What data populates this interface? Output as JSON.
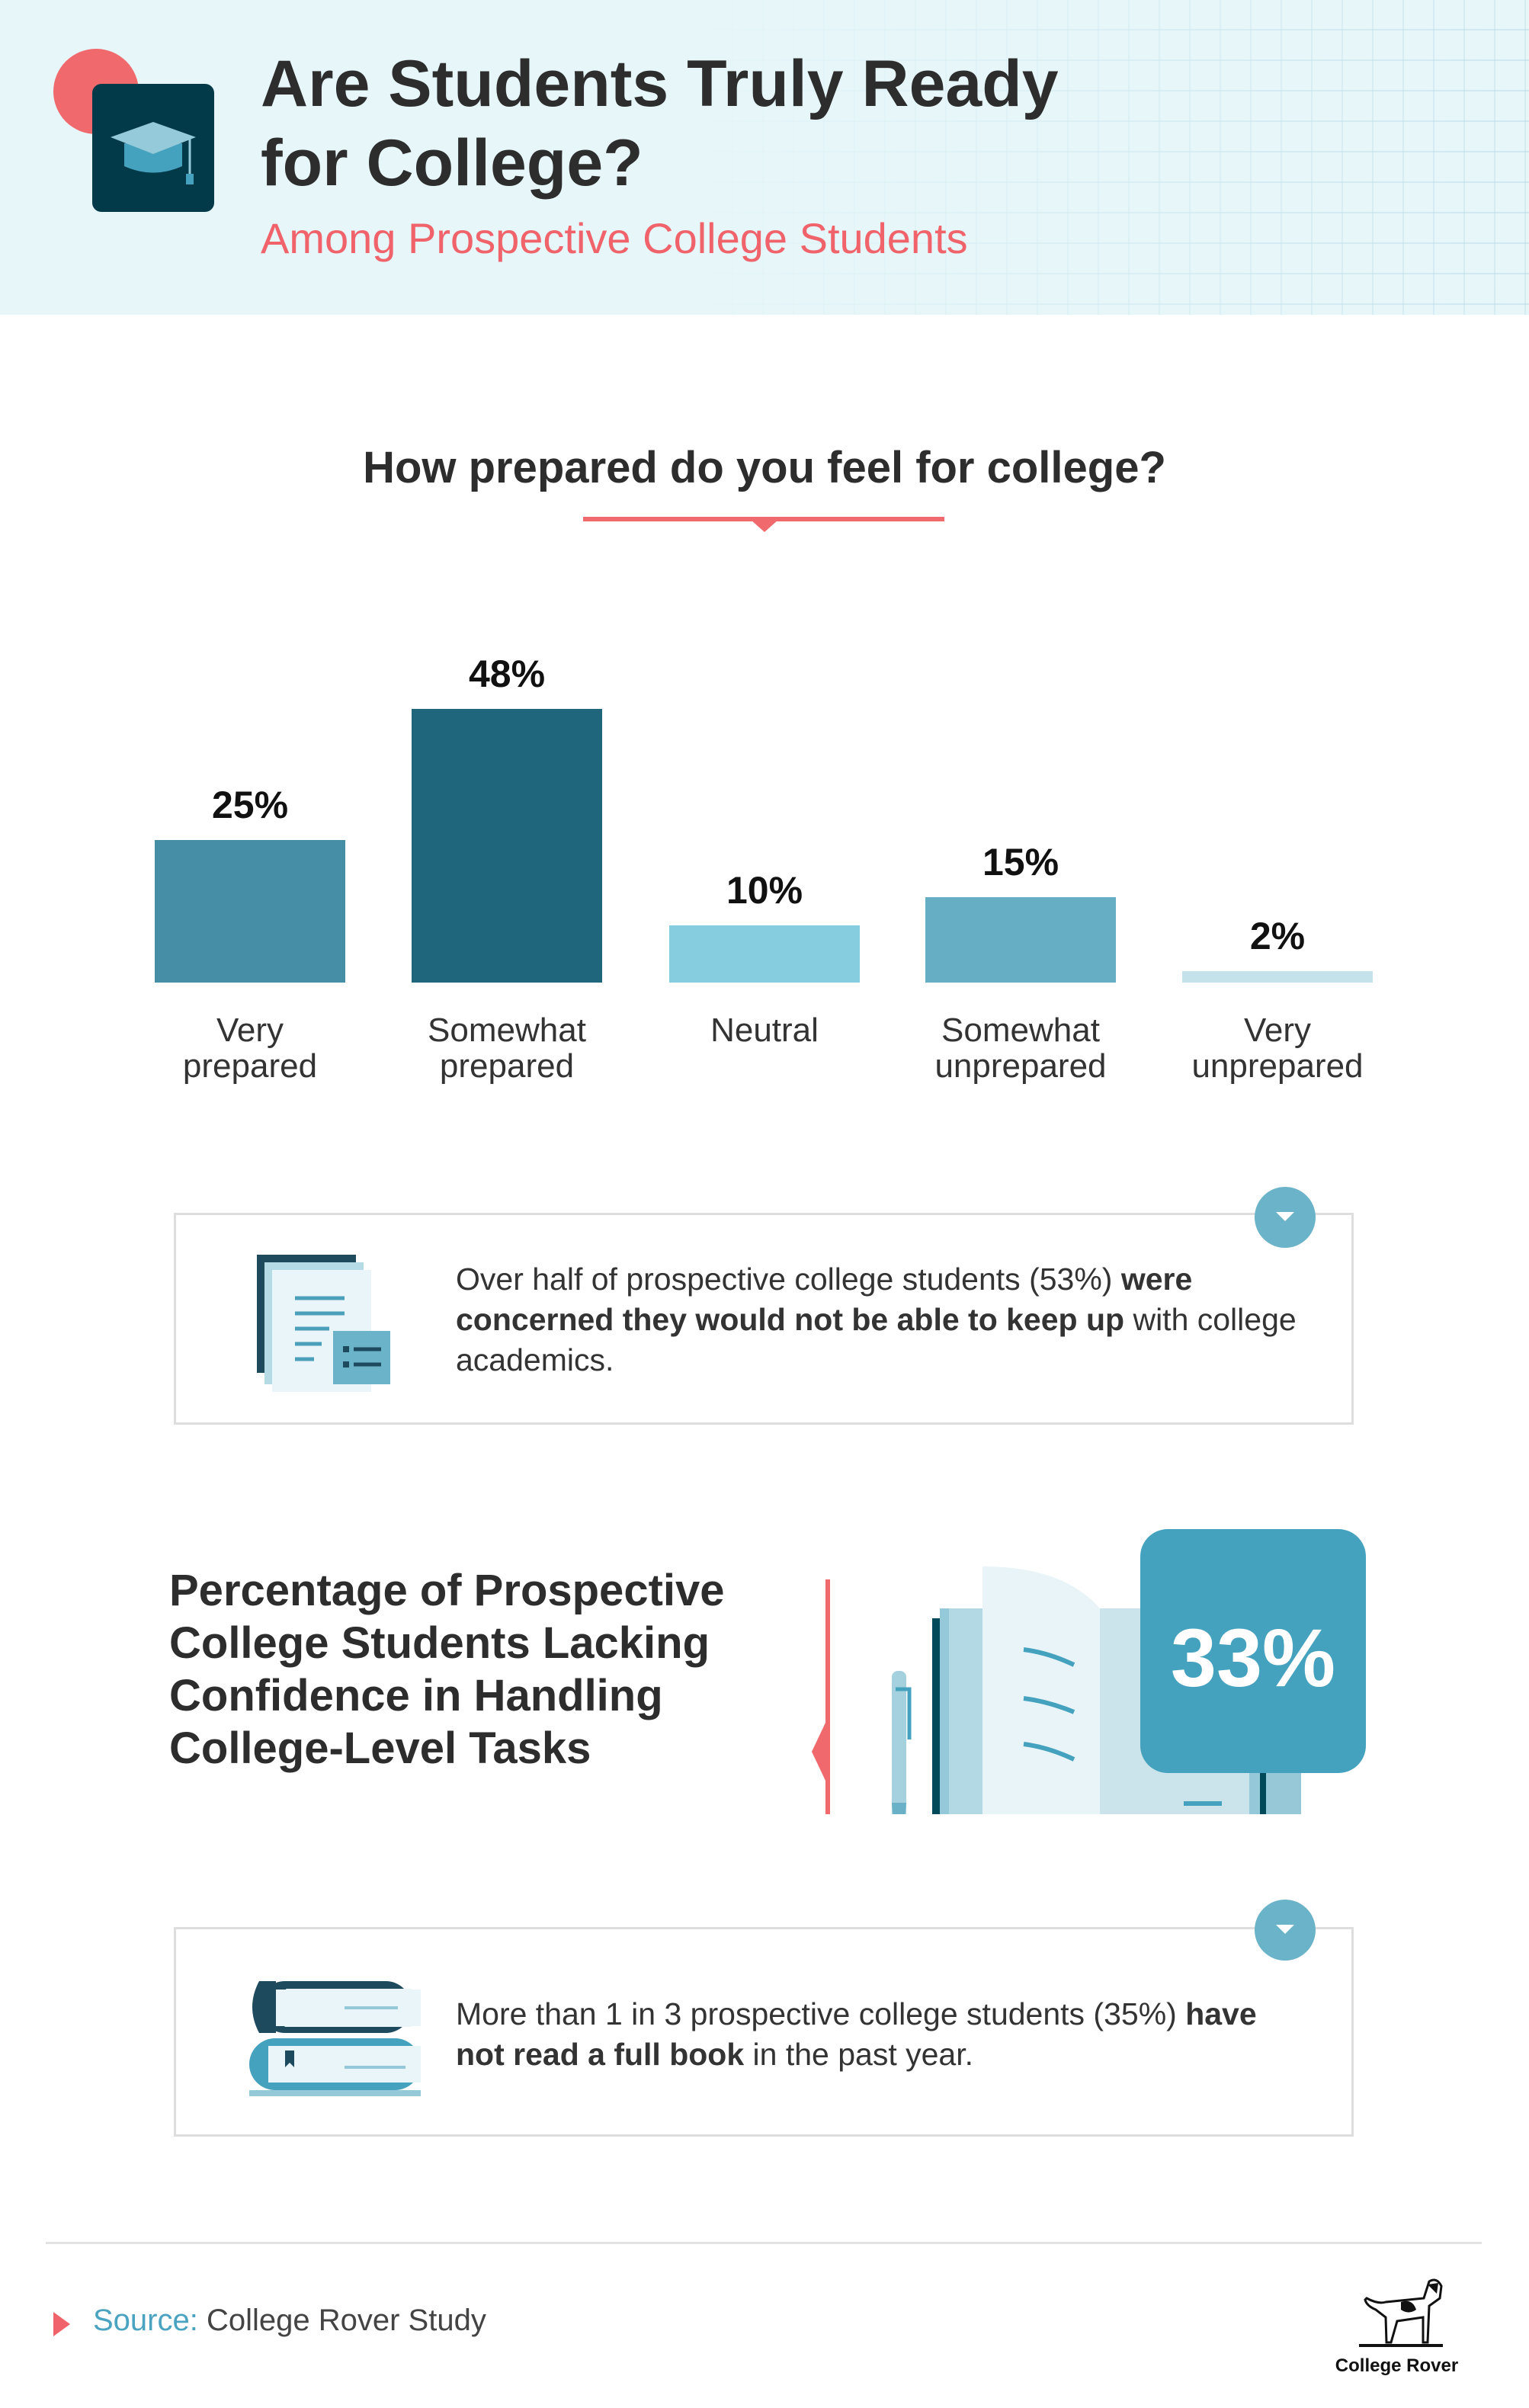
{
  "header": {
    "title_line1": "Are Students Truly Ready",
    "title_line2": "for College?",
    "subtitle": "Among Prospective College Students",
    "icon": "graduation-cap-icon"
  },
  "colors": {
    "accent_red": "#f0636a",
    "dark_teal": "#033a4a",
    "header_bg": "#e6f6f9"
  },
  "chart_data": {
    "type": "bar",
    "title": "How prepared do you feel for college?",
    "categories": [
      "Very prepared",
      "Somewhat prepared",
      "Neutral",
      "Somewhat unprepared",
      "Very unprepared"
    ],
    "category_lines": [
      [
        "Very",
        "prepared"
      ],
      [
        "Somewhat",
        "prepared"
      ],
      [
        "Neutral",
        ""
      ],
      [
        "Somewhat",
        "unprepared"
      ],
      [
        "Very",
        "unprepared"
      ]
    ],
    "values": [
      25,
      48,
      10,
      15,
      2
    ],
    "value_labels": [
      "25%",
      "48%",
      "10%",
      "15%",
      "2%"
    ],
    "bar_colors": [
      "#458ea6",
      "#1f667c",
      "#87cde0",
      "#65aec4",
      "#c4e2ea"
    ],
    "unit": "%",
    "ylim": [
      0,
      48
    ],
    "grid": false,
    "legend": "none"
  },
  "callout1": {
    "icon": "documents-icon",
    "text_plain1": "Over half of prospective college students (53%) ",
    "text_bold": "were concerned they would not be able to keep up",
    "text_plain2": " with college academics."
  },
  "section": {
    "heading": "Percentage of Prospective College Students Lacking Confidence in Handling College-Level Tasks",
    "value": "33%",
    "icon": "open-book-icon"
  },
  "callout2": {
    "icon": "books-stack-icon",
    "text_plain1": "More than 1 in 3 prospective college students (35%) ",
    "text_bold": "have not read a full book",
    "text_plain2": " in the past year."
  },
  "footer": {
    "source_label": "Source:",
    "source_value": "College Rover Study",
    "logo_text": "College Rover"
  }
}
